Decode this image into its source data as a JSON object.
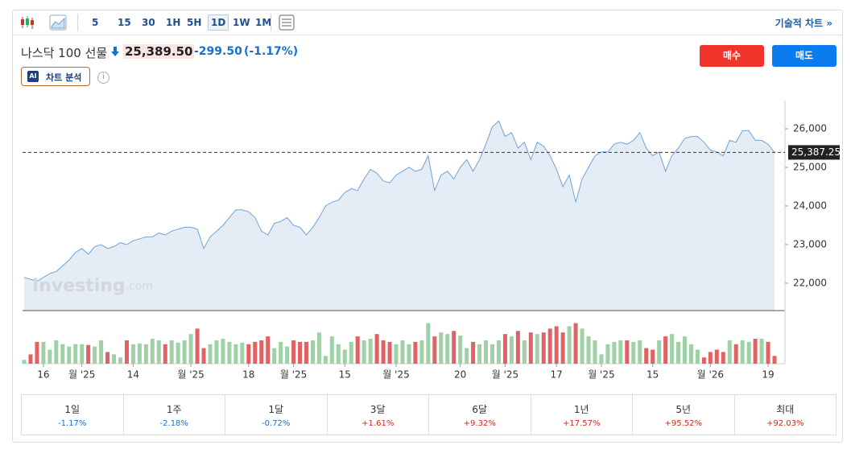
{
  "toolbar": {
    "intervals": [
      "5",
      "15",
      "30",
      "1H",
      "5H",
      "1D",
      "1W",
      "1M"
    ],
    "active_interval": "1D",
    "technical_chart": "기술적 차트",
    "more": "»"
  },
  "header": {
    "instrument": "나스닥 100 선물",
    "price": "25,389.50",
    "change": "-299.50",
    "change_pct": "(-1.17%)",
    "ai_label": "AI",
    "ai_text": "차트 분석",
    "buy": "매수",
    "sell": "매도"
  },
  "chart_data": {
    "type": "line",
    "values": [
      22150,
      22100,
      22050,
      22150,
      22250,
      22300,
      22450,
      22600,
      22800,
      22900,
      22750,
      22950,
      23000,
      22900,
      22950,
      23050,
      23000,
      23100,
      23150,
      23200,
      23200,
      23300,
      23250,
      23350,
      23400,
      23450,
      23450,
      23400,
      22900,
      23200,
      23350,
      23500,
      23700,
      23900,
      23900,
      23850,
      23700,
      23350,
      23250,
      23550,
      23600,
      23700,
      23500,
      23450,
      23250,
      23450,
      23700,
      24000,
      24100,
      24150,
      24350,
      24450,
      24400,
      24700,
      24950,
      24850,
      24650,
      24600,
      24800,
      24900,
      25000,
      24900,
      24950,
      25300,
      24400,
      24800,
      24900,
      24700,
      25000,
      25200,
      24900,
      25200,
      25600,
      26050,
      26200,
      25800,
      25900,
      25500,
      25650,
      25200,
      25650,
      25550,
      25300,
      24950,
      24500,
      24800,
      24100,
      24700,
      25000,
      25300,
      25400,
      25400,
      25600,
      25650,
      25600,
      25700,
      25900,
      25500,
      25300,
      25400,
      24900,
      25300,
      25500,
      25750,
      25800,
      25800,
      25650,
      25450,
      25400,
      25300,
      25700,
      25650,
      25950,
      25950,
      25700,
      25700,
      25600,
      25387.25
    ],
    "color": "#6fa3d4",
    "fill": "#e4edf6",
    "xlim": [
      0,
      117
    ],
    "xticks": [
      {
        "value": 3,
        "label": "16"
      },
      {
        "value": 9,
        "label": "월 '25"
      },
      {
        "value": 17,
        "label": "14"
      },
      {
        "value": 26,
        "label": "월 '25"
      },
      {
        "value": 35,
        "label": "18"
      },
      {
        "value": 42,
        "label": "월 '25"
      },
      {
        "value": 50,
        "label": "15"
      },
      {
        "value": 58,
        "label": "월 '25"
      },
      {
        "value": 68,
        "label": "20"
      },
      {
        "value": 75,
        "label": "월 '25"
      },
      {
        "value": 83,
        "label": "17"
      },
      {
        "value": 90,
        "label": "월 '25"
      },
      {
        "value": 98,
        "label": "15"
      },
      {
        "value": 107,
        "label": "월 '26"
      },
      {
        "value": 116,
        "label": "19"
      }
    ],
    "ylim": [
      21290,
      26730
    ],
    "yticks": [
      {
        "value": 22000,
        "label": "22,000"
      },
      {
        "value": 23000,
        "label": "23,000"
      },
      {
        "value": 24000,
        "label": "24,000"
      },
      {
        "value": 25000,
        "label": "25,000"
      },
      {
        "value": 26000,
        "label": "26,000"
      }
    ],
    "last_price": {
      "value": 25387.25,
      "label": "25,387.25"
    },
    "volume": {
      "values": [
        5,
        12,
        28,
        28,
        18,
        30,
        25,
        22,
        25,
        25,
        24,
        22,
        30,
        15,
        12,
        8,
        30,
        25,
        26,
        25,
        32,
        30,
        25,
        30,
        27,
        30,
        38,
        45,
        20,
        25,
        30,
        32,
        28,
        25,
        27,
        25,
        28,
        30,
        35,
        20,
        28,
        22,
        30,
        28,
        28,
        30,
        40,
        10,
        35,
        25,
        18,
        28,
        35,
        30,
        32,
        38,
        30,
        28,
        25,
        30,
        25,
        28,
        30,
        52,
        35,
        40,
        38,
        42,
        36,
        20,
        28,
        25,
        30,
        25,
        30,
        38,
        35,
        42,
        30,
        40,
        38,
        40,
        45,
        48,
        40,
        48,
        52,
        45,
        35,
        30,
        12,
        25,
        28,
        30,
        30,
        28,
        30,
        20,
        18,
        30,
        35,
        38,
        28,
        35,
        25,
        18,
        8,
        15,
        18,
        15,
        30,
        25,
        30,
        28,
        32,
        32,
        28,
        10
      ],
      "ylim": [
        0,
        66
      ],
      "up_color": "#9fd1a6",
      "down_color": "#e06262"
    },
    "watermark": {
      "name": "Investing",
      "suffix": ".com"
    }
  },
  "performance": [
    {
      "period": "1일",
      "change": "-1.17%",
      "color": "#1a6fc9"
    },
    {
      "period": "1주",
      "change": "-2.18%",
      "color": "#1a6fc9"
    },
    {
      "period": "1달",
      "change": "-0.72%",
      "color": "#1a6fc9"
    },
    {
      "period": "3달",
      "change": "+1.61%",
      "color": "#d0271d"
    },
    {
      "period": "6달",
      "change": "+9.32%",
      "color": "#d0271d"
    },
    {
      "period": "1년",
      "change": "+17.57%",
      "color": "#d0271d"
    },
    {
      "period": "5년",
      "change": "+95.52%",
      "color": "#d0271d"
    },
    {
      "period": "최대",
      "change": "+92.03%",
      "color": "#d0271d"
    }
  ]
}
